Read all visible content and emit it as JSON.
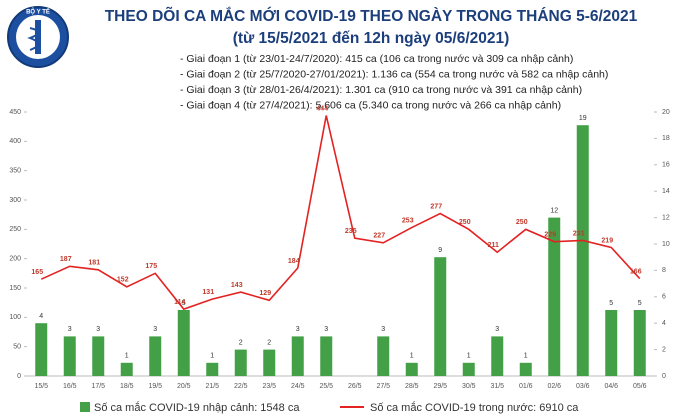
{
  "header": {
    "logo_text": "BỘ Y TẾ",
    "title": "THEO DÕI CA MẮC MỚI COVID-19 THEO NGÀY TRONG THÁNG 5-6/2021",
    "subtitle": "(từ 15/5/2021 đến 12h ngày 05/6/2021)",
    "notes": [
      "- Giai đoạn 1 (từ 23/01-24/7/2020): 415 ca (106 ca trong nước và 309 ca nhập cảnh)",
      "- Giai đoạn 2 (từ 25/7/2020-27/01/2021): 1.136 ca (554 ca trong nước và 582 ca nhập cảnh)",
      "- Giai đoạn 3 (từ 28/01-26/4/2021): 1.301 ca (910 ca trong nước và 391 ca nhập cảnh)",
      "- Giai đoạn 4 (từ 27/4/2021): 5.606 ca (5.340 ca trong nước và 266 ca nhập cảnh)"
    ]
  },
  "chart_data": {
    "type": "combo",
    "categories": [
      "15/5",
      "16/5",
      "17/5",
      "18/5",
      "19/5",
      "20/5",
      "21/5",
      "22/5",
      "23/5",
      "24/5",
      "25/5",
      "26/5",
      "27/5",
      "28/5",
      "29/5",
      "30/5",
      "31/5",
      "01/6",
      "02/6",
      "03/6",
      "04/6",
      "05/6"
    ],
    "series": [
      {
        "name": "Số ca mắc COVID-19 nhập cảnh: 1548 ca",
        "type": "bar",
        "axis": "y2",
        "color": "#43a047",
        "values": [
          4,
          3,
          3,
          1,
          3,
          5,
          1,
          2,
          2,
          3,
          3,
          null,
          3,
          1,
          9,
          1,
          3,
          1,
          12,
          19,
          5,
          5
        ]
      },
      {
        "name": "Số ca mắc COVID-19 trong nước: 6910 ca",
        "type": "line",
        "color": "#e32222",
        "values": [
          165,
          187,
          181,
          152,
          175,
          114,
          131,
          143,
          129,
          184,
          444,
          235,
          227,
          253,
          277,
          250,
          211,
          250,
          229,
          231,
          219,
          166
        ]
      }
    ],
    "ylim": [
      0,
      450
    ],
    "yticks": [
      0,
      50,
      100,
      150,
      200,
      250,
      300,
      350,
      400,
      450
    ],
    "y2lim": [
      0,
      20
    ],
    "y2ticks": [
      0,
      2,
      4,
      6,
      8,
      10,
      12,
      14,
      16,
      18,
      20
    ]
  }
}
